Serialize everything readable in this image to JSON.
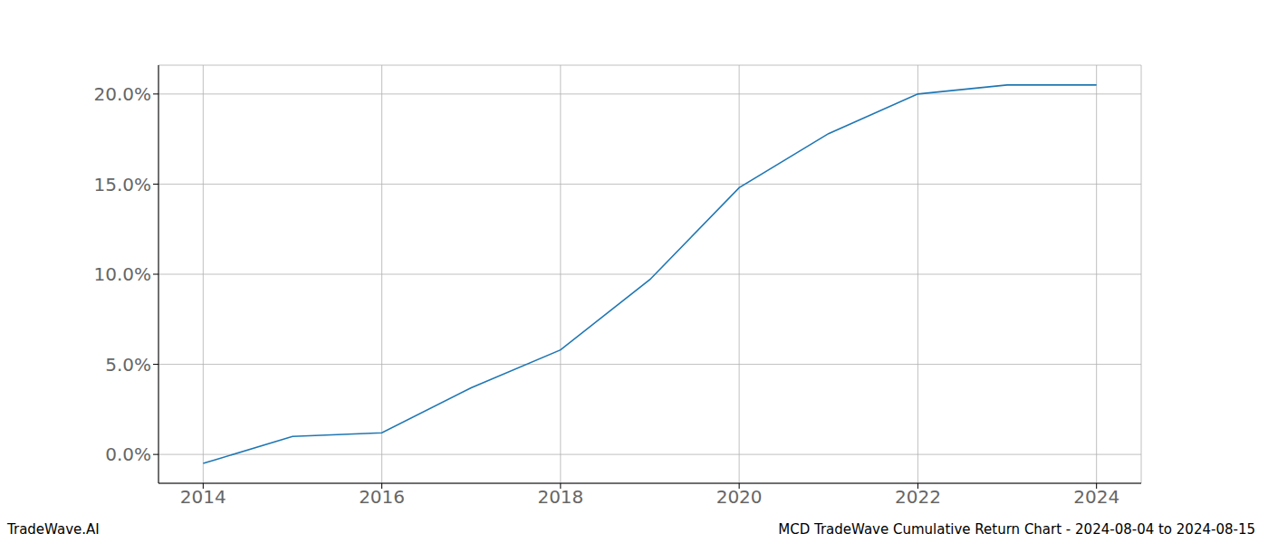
{
  "chart_data": {
    "type": "line",
    "title": "MCD TradeWave Cumulative Return Chart - 2024-08-04 to 2024-08-15",
    "annotations": [
      "TradeWave.AI"
    ],
    "x": [
      2014,
      2015,
      2016,
      2017,
      2018,
      2019,
      2020,
      2021,
      2022,
      2023,
      2024
    ],
    "values": [
      -0.5,
      1.0,
      1.2,
      3.7,
      5.8,
      9.7,
      14.8,
      17.8,
      20.0,
      20.5,
      20.5
    ],
    "color": "#1f77b4",
    "xlim": [
      2013.5,
      2024.5
    ],
    "xticks": [
      2014,
      2016,
      2018,
      2020,
      2022,
      2024
    ],
    "ylim": [
      -1.6,
      21.6
    ],
    "yticks": [
      {
        "value": 0,
        "label": "0.0%"
      },
      {
        "value": 5,
        "label": "5.0%"
      },
      {
        "value": 10,
        "label": "10.0%"
      },
      {
        "value": 15,
        "label": "15.0%"
      },
      {
        "value": 20,
        "label": "20.0%"
      }
    ],
    "grid": true
  }
}
